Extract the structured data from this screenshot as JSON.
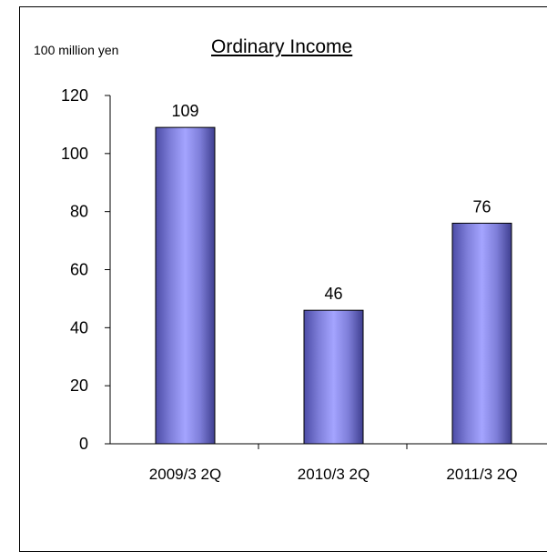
{
  "chart_data": {
    "type": "bar",
    "title": "Ordinary Income",
    "unit_label": "100 million yen",
    "categories": [
      "2009/3 2Q",
      "2010/3 2Q",
      "2011/3 2Q"
    ],
    "values": [
      109,
      46,
      76
    ],
    "data_labels": [
      "109",
      "46",
      "76"
    ],
    "ylim": [
      0,
      120
    ],
    "yticks": [
      0,
      20,
      40,
      60,
      80,
      100,
      120
    ],
    "xlabel": "",
    "ylabel": "",
    "grid": false,
    "legend": "none",
    "bar_color": "#8080f0"
  }
}
